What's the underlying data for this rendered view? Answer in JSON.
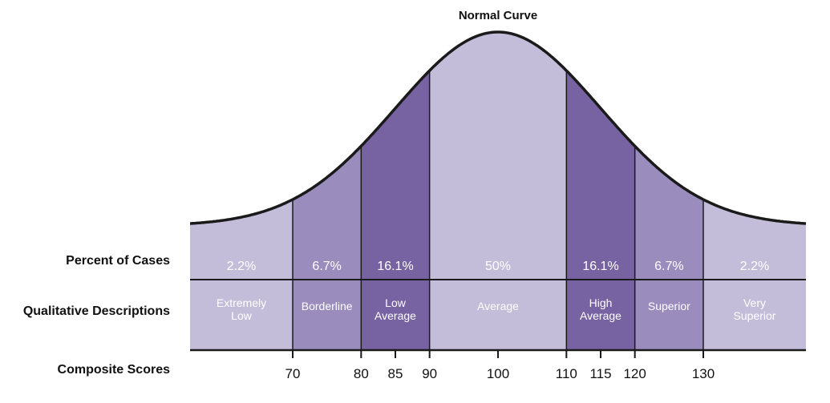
{
  "title": "Normal Curve",
  "row_labels": {
    "percent": "Percent of Cases",
    "qualitative": "Qualitative Descriptions",
    "composite": "Composite Scores"
  },
  "colors": {
    "light": "#c3bdd9",
    "medium": "#9a8cbd",
    "dark": "#7762a2",
    "outline": "#1a1a1a"
  },
  "segments": [
    {
      "from": 55,
      "to": 70,
      "percent": "2.2%",
      "desc": [
        "Extremely",
        "Low"
      ],
      "shade": "light"
    },
    {
      "from": 70,
      "to": 80,
      "percent": "6.7%",
      "desc": [
        "Borderline"
      ],
      "shade": "medium"
    },
    {
      "from": 80,
      "to": 90,
      "percent": "16.1%",
      "desc": [
        "Low",
        "Average"
      ],
      "shade": "dark"
    },
    {
      "from": 90,
      "to": 110,
      "percent": "50%",
      "desc": [
        "Average"
      ],
      "shade": "light"
    },
    {
      "from": 110,
      "to": 120,
      "percent": "16.1%",
      "desc": [
        "High",
        "Average"
      ],
      "shade": "dark"
    },
    {
      "from": 120,
      "to": 130,
      "percent": "6.7%",
      "desc": [
        "Superior"
      ],
      "shade": "medium"
    },
    {
      "from": 130,
      "to": 145,
      "percent": "2.2%",
      "desc": [
        "Very",
        "Superior"
      ],
      "shade": "light"
    }
  ],
  "composite_scores": [
    "70",
    "80",
    "85",
    "90",
    "100",
    "110",
    "115",
    "120",
    "130"
  ],
  "curve": {
    "mean": 100,
    "sd": 15,
    "score_min": 55,
    "score_max": 145
  }
}
